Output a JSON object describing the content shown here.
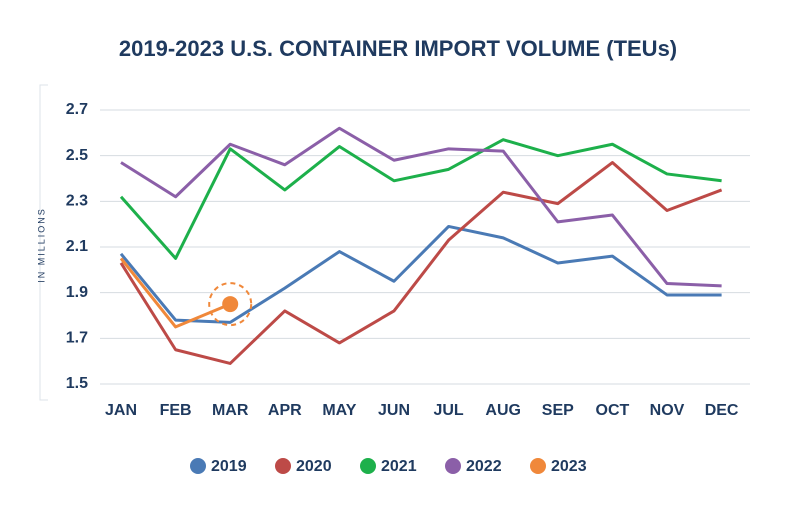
{
  "chart_data": {
    "type": "line",
    "title": "2019-2023 U.S. CONTAINER IMPORT VOLUME (TEUs)",
    "y_axis_label": "IN MILLIONS",
    "categories": [
      "JAN",
      "FEB",
      "MAR",
      "APR",
      "MAY",
      "JUN",
      "JUL",
      "AUG",
      "SEP",
      "OCT",
      "NOV",
      "DEC"
    ],
    "ylim": [
      1.5,
      2.7
    ],
    "yticks": [
      1.5,
      1.7,
      1.9,
      2.1,
      2.3,
      2.5,
      2.7
    ],
    "grid": true,
    "legend": "bottom",
    "series": [
      {
        "name": "2019",
        "color": "#4a7ab5",
        "values": [
          2.07,
          1.78,
          1.77,
          1.92,
          2.08,
          1.95,
          2.19,
          2.14,
          2.03,
          2.06,
          1.89,
          1.89
        ]
      },
      {
        "name": "2020",
        "color": "#bd4a47",
        "values": [
          2.03,
          1.65,
          1.59,
          1.82,
          1.68,
          1.82,
          2.13,
          2.34,
          2.29,
          2.47,
          2.26,
          2.35
        ]
      },
      {
        "name": "2021",
        "color": "#1db04b",
        "values": [
          2.32,
          2.05,
          2.53,
          2.35,
          2.54,
          2.39,
          2.44,
          2.57,
          2.5,
          2.55,
          2.42,
          2.39
        ]
      },
      {
        "name": "2022",
        "color": "#8b5fa8",
        "values": [
          2.47,
          2.32,
          2.55,
          2.46,
          2.62,
          2.48,
          2.53,
          2.52,
          2.21,
          2.24,
          1.94,
          1.93
        ]
      },
      {
        "name": "2023",
        "color": "#f0883a",
        "values": [
          2.05,
          1.75,
          1.85,
          null,
          null,
          null,
          null,
          null,
          null,
          null,
          null,
          null
        ]
      }
    ]
  }
}
